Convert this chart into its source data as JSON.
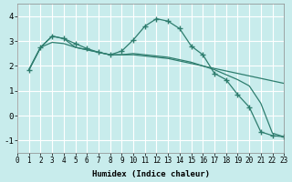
{
  "title": "",
  "xlabel": "Humidex (Indice chaleur)",
  "ylabel": "",
  "background_color": "#c8ecec",
  "grid_color": "#ffffff",
  "line_color": "#2e7d6e",
  "xlim": [
    0,
    23
  ],
  "ylim": [
    -1.5,
    4.5
  ],
  "yticks": [
    -1,
    0,
    1,
    2,
    3,
    4
  ],
  "xticks": [
    0,
    1,
    2,
    3,
    4,
    5,
    6,
    7,
    8,
    9,
    10,
    11,
    12,
    13,
    14,
    15,
    16,
    17,
    18,
    19,
    20,
    21,
    22,
    23
  ],
  "curve1_x": [
    1,
    2,
    3,
    4,
    5,
    6,
    7,
    8,
    9,
    10,
    11,
    12,
    13,
    14,
    15,
    16,
    17,
    18,
    19,
    20,
    21,
    22,
    23
  ],
  "curve1_y": [
    1.85,
    2.75,
    3.2,
    3.1,
    2.9,
    2.7,
    2.55,
    2.45,
    2.6,
    3.05,
    3.6,
    3.9,
    3.8,
    3.5,
    2.8,
    2.45,
    1.7,
    1.45,
    0.85,
    0.35,
    -0.65,
    -0.8,
    -0.85
  ],
  "curve2_x": [
    1,
    2,
    3,
    4,
    5,
    6,
    7,
    8,
    9,
    10,
    11,
    12,
    13,
    14,
    15,
    16,
    17,
    18,
    19,
    20,
    21,
    22,
    23
  ],
  "curve2_y": [
    1.85,
    2.75,
    3.2,
    3.1,
    2.75,
    2.65,
    2.55,
    2.45,
    2.45,
    2.45,
    2.4,
    2.35,
    2.3,
    2.2,
    2.1,
    2.0,
    1.9,
    1.8,
    1.7,
    1.6,
    1.5,
    1.4,
    1.3
  ],
  "curve3_x": [
    1,
    2,
    3,
    4,
    5,
    6,
    7,
    8,
    9,
    10,
    11,
    12,
    13,
    14,
    15,
    16,
    17,
    18,
    19,
    20,
    21,
    22,
    23
  ],
  "curve3_y": [
    1.85,
    2.75,
    2.95,
    2.9,
    2.75,
    2.65,
    2.55,
    2.45,
    2.45,
    2.5,
    2.45,
    2.4,
    2.35,
    2.25,
    2.15,
    2.0,
    1.85,
    1.65,
    1.45,
    1.2,
    0.5,
    -0.7,
    -0.85
  ]
}
